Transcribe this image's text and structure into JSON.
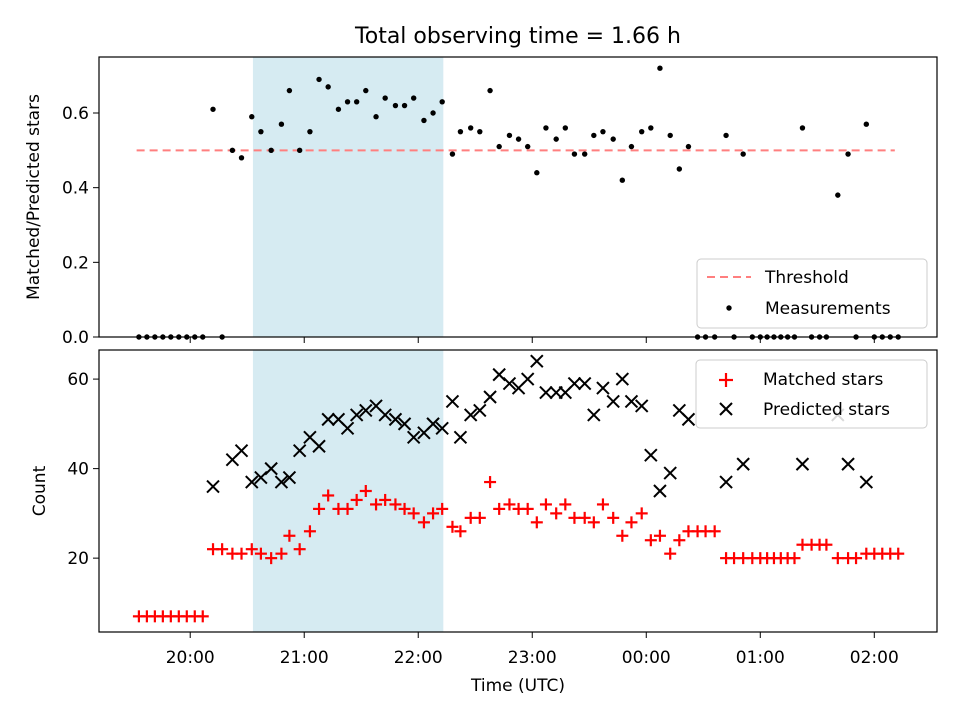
{
  "title": "Total observing time = 1.66 h",
  "shade_color": "#add8e6",
  "chart_data": [
    {
      "type": "scatter",
      "ylabel": "Matched/Predicted stars",
      "xlim": [
        19.2,
        26.55
      ],
      "ylim": [
        0,
        0.75
      ],
      "yticks": [
        0,
        0.2,
        0.4,
        0.6
      ],
      "ytick_labels": [
        "0.0",
        "0.2",
        "0.4",
        "0.6"
      ],
      "xticks": [
        20,
        21,
        22,
        23,
        24,
        25,
        26
      ],
      "shaded_span": [
        20.55,
        22.22
      ],
      "threshold": {
        "name": "Threshold",
        "value": 0.5,
        "x_range": [
          19.53,
          26.18
        ],
        "color": "#ff7f7f"
      },
      "legend": {
        "location": "lower right",
        "entries": [
          "Threshold",
          "Measurements"
        ]
      },
      "series": [
        {
          "name": "Measurements",
          "color": "#000000",
          "points": [
            [
              19.55,
              0
            ],
            [
              19.62,
              0
            ],
            [
              19.69,
              0
            ],
            [
              19.76,
              0
            ],
            [
              19.83,
              0
            ],
            [
              19.9,
              0
            ],
            [
              19.97,
              0
            ],
            [
              20.04,
              0
            ],
            [
              20.11,
              0
            ],
            [
              20.2,
              0.61
            ],
            [
              20.28,
              0
            ],
            [
              20.37,
              0.5
            ],
            [
              20.45,
              0.48
            ],
            [
              20.54,
              0.59
            ],
            [
              20.62,
              0.55
            ],
            [
              20.71,
              0.5
            ],
            [
              20.8,
              0.57
            ],
            [
              20.87,
              0.66
            ],
            [
              20.96,
              0.5
            ],
            [
              21.05,
              0.55
            ],
            [
              21.13,
              0.69
            ],
            [
              21.21,
              0.67
            ],
            [
              21.3,
              0.61
            ],
            [
              21.38,
              0.63
            ],
            [
              21.46,
              0.63
            ],
            [
              21.54,
              0.66
            ],
            [
              21.63,
              0.59
            ],
            [
              21.71,
              0.64
            ],
            [
              21.8,
              0.62
            ],
            [
              21.88,
              0.62
            ],
            [
              21.96,
              0.64
            ],
            [
              22.05,
              0.58
            ],
            [
              22.13,
              0.6
            ],
            [
              22.21,
              0.63
            ],
            [
              22.3,
              0.49
            ],
            [
              22.37,
              0.55
            ],
            [
              22.46,
              0.56
            ],
            [
              22.54,
              0.55
            ],
            [
              22.63,
              0.66
            ],
            [
              22.71,
              0.51
            ],
            [
              22.8,
              0.54
            ],
            [
              22.88,
              0.53
            ],
            [
              22.96,
              0.51
            ],
            [
              23.04,
              0.44
            ],
            [
              23.12,
              0.56
            ],
            [
              23.21,
              0.53
            ],
            [
              23.29,
              0.56
            ],
            [
              23.37,
              0.49
            ],
            [
              23.46,
              0.49
            ],
            [
              23.54,
              0.54
            ],
            [
              23.62,
              0.55
            ],
            [
              23.71,
              0.53
            ],
            [
              23.79,
              0.42
            ],
            [
              23.87,
              0.51
            ],
            [
              23.96,
              0.55
            ],
            [
              24.04,
              0.56
            ],
            [
              24.12,
              0.72
            ],
            [
              24.21,
              0.54
            ],
            [
              24.29,
              0.45
            ],
            [
              24.37,
              0.51
            ],
            [
              24.45,
              0
            ],
            [
              24.52,
              0
            ],
            [
              24.6,
              0
            ],
            [
              24.7,
              0.54
            ],
            [
              24.77,
              0
            ],
            [
              24.85,
              0.49
            ],
            [
              24.93,
              0
            ],
            [
              25.0,
              0
            ],
            [
              25.06,
              0
            ],
            [
              25.12,
              0
            ],
            [
              25.18,
              0
            ],
            [
              25.24,
              0
            ],
            [
              25.3,
              0
            ],
            [
              25.37,
              0.56
            ],
            [
              25.45,
              0
            ],
            [
              25.52,
              0
            ],
            [
              25.58,
              0
            ],
            [
              25.68,
              0.38
            ],
            [
              25.77,
              0.49
            ],
            [
              25.84,
              0
            ],
            [
              25.93,
              0.57
            ],
            [
              26.0,
              0
            ],
            [
              26.07,
              0
            ],
            [
              26.14,
              0
            ],
            [
              26.21,
              0
            ]
          ]
        }
      ]
    },
    {
      "type": "scatter",
      "xlabel": "Time (UTC)",
      "ylabel": "Count",
      "xlim": [
        19.2,
        26.55
      ],
      "ylim": [
        3.5,
        66.5
      ],
      "yticks": [
        20,
        40,
        60
      ],
      "xticks": [
        20,
        21,
        22,
        23,
        24,
        25,
        26
      ],
      "xtick_labels": [
        "20:00",
        "21:00",
        "22:00",
        "23:00",
        "00:00",
        "01:00",
        "02:00"
      ],
      "shaded_span": [
        20.55,
        22.22
      ],
      "legend": {
        "location": "upper right",
        "entries": [
          "Matched stars",
          "Predicted stars"
        ]
      },
      "series": [
        {
          "name": "Matched stars",
          "marker": "+",
          "color": "#ff0000",
          "points": [
            [
              19.55,
              7
            ],
            [
              19.62,
              7
            ],
            [
              19.69,
              7
            ],
            [
              19.76,
              7
            ],
            [
              19.83,
              7
            ],
            [
              19.9,
              7
            ],
            [
              19.97,
              7
            ],
            [
              20.04,
              7
            ],
            [
              20.11,
              7
            ],
            [
              20.2,
              22
            ],
            [
              20.28,
              22
            ],
            [
              20.37,
              21
            ],
            [
              20.45,
              21
            ],
            [
              20.54,
              22
            ],
            [
              20.62,
              21
            ],
            [
              20.71,
              20
            ],
            [
              20.8,
              21
            ],
            [
              20.87,
              25
            ],
            [
              20.96,
              22
            ],
            [
              21.05,
              26
            ],
            [
              21.13,
              31
            ],
            [
              21.21,
              34
            ],
            [
              21.3,
              31
            ],
            [
              21.38,
              31
            ],
            [
              21.46,
              33
            ],
            [
              21.54,
              35
            ],
            [
              21.63,
              32
            ],
            [
              21.71,
              33
            ],
            [
              21.8,
              32
            ],
            [
              21.88,
              31
            ],
            [
              21.96,
              30
            ],
            [
              22.05,
              28
            ],
            [
              22.13,
              30
            ],
            [
              22.21,
              31
            ],
            [
              22.3,
              27
            ],
            [
              22.37,
              26
            ],
            [
              22.46,
              29
            ],
            [
              22.54,
              29
            ],
            [
              22.63,
              37
            ],
            [
              22.71,
              31
            ],
            [
              22.8,
              32
            ],
            [
              22.88,
              31
            ],
            [
              22.96,
              31
            ],
            [
              23.04,
              28
            ],
            [
              23.12,
              32
            ],
            [
              23.21,
              30
            ],
            [
              23.29,
              32
            ],
            [
              23.37,
              29
            ],
            [
              23.46,
              29
            ],
            [
              23.54,
              28
            ],
            [
              23.62,
              32
            ],
            [
              23.71,
              29
            ],
            [
              23.79,
              25
            ],
            [
              23.87,
              28
            ],
            [
              23.96,
              30
            ],
            [
              24.04,
              24
            ],
            [
              24.12,
              25
            ],
            [
              24.21,
              21
            ],
            [
              24.29,
              24
            ],
            [
              24.37,
              26
            ],
            [
              24.45,
              26
            ],
            [
              24.52,
              26
            ],
            [
              24.6,
              26
            ],
            [
              24.7,
              20
            ],
            [
              24.77,
              20
            ],
            [
              24.85,
              20
            ],
            [
              24.93,
              20
            ],
            [
              25.0,
              20
            ],
            [
              25.06,
              20
            ],
            [
              25.12,
              20
            ],
            [
              25.18,
              20
            ],
            [
              25.24,
              20
            ],
            [
              25.3,
              20
            ],
            [
              25.37,
              23
            ],
            [
              25.45,
              23
            ],
            [
              25.52,
              23
            ],
            [
              25.58,
              23
            ],
            [
              25.68,
              20
            ],
            [
              25.77,
              20
            ],
            [
              25.84,
              20
            ],
            [
              25.93,
              21
            ],
            [
              26.0,
              21
            ],
            [
              26.07,
              21
            ],
            [
              26.14,
              21
            ],
            [
              26.21,
              21
            ]
          ]
        },
        {
          "name": "Predicted stars",
          "marker": "x",
          "color": "#000000",
          "points": [
            [
              20.2,
              36
            ],
            [
              20.37,
              42
            ],
            [
              20.45,
              44
            ],
            [
              20.54,
              37
            ],
            [
              20.62,
              38
            ],
            [
              20.71,
              40
            ],
            [
              20.8,
              37
            ],
            [
              20.87,
              38
            ],
            [
              20.96,
              44
            ],
            [
              21.05,
              47
            ],
            [
              21.13,
              45
            ],
            [
              21.21,
              51
            ],
            [
              21.3,
              51
            ],
            [
              21.38,
              49
            ],
            [
              21.46,
              52
            ],
            [
              21.54,
              53
            ],
            [
              21.63,
              54
            ],
            [
              21.71,
              52
            ],
            [
              21.8,
              51
            ],
            [
              21.88,
              50
            ],
            [
              21.96,
              47
            ],
            [
              22.05,
              48
            ],
            [
              22.13,
              50
            ],
            [
              22.21,
              49
            ],
            [
              22.3,
              55
            ],
            [
              22.37,
              47
            ],
            [
              22.46,
              52
            ],
            [
              22.54,
              53
            ],
            [
              22.63,
              56
            ],
            [
              22.71,
              61
            ],
            [
              22.8,
              59
            ],
            [
              22.88,
              58
            ],
            [
              22.96,
              60
            ],
            [
              23.04,
              64
            ],
            [
              23.12,
              57
            ],
            [
              23.21,
              57
            ],
            [
              23.29,
              57
            ],
            [
              23.37,
              59
            ],
            [
              23.46,
              59
            ],
            [
              23.54,
              52
            ],
            [
              23.62,
              58
            ],
            [
              23.71,
              55
            ],
            [
              23.79,
              60
            ],
            [
              23.87,
              55
            ],
            [
              23.96,
              54
            ],
            [
              24.04,
              43
            ],
            [
              24.12,
              35
            ],
            [
              24.21,
              39
            ],
            [
              24.29,
              53
            ],
            [
              24.37,
              51
            ],
            [
              24.7,
              37
            ],
            [
              24.85,
              41
            ],
            [
              25.37,
              41
            ],
            [
              25.68,
              52
            ],
            [
              25.77,
              41
            ],
            [
              25.93,
              37
            ]
          ]
        }
      ]
    }
  ]
}
